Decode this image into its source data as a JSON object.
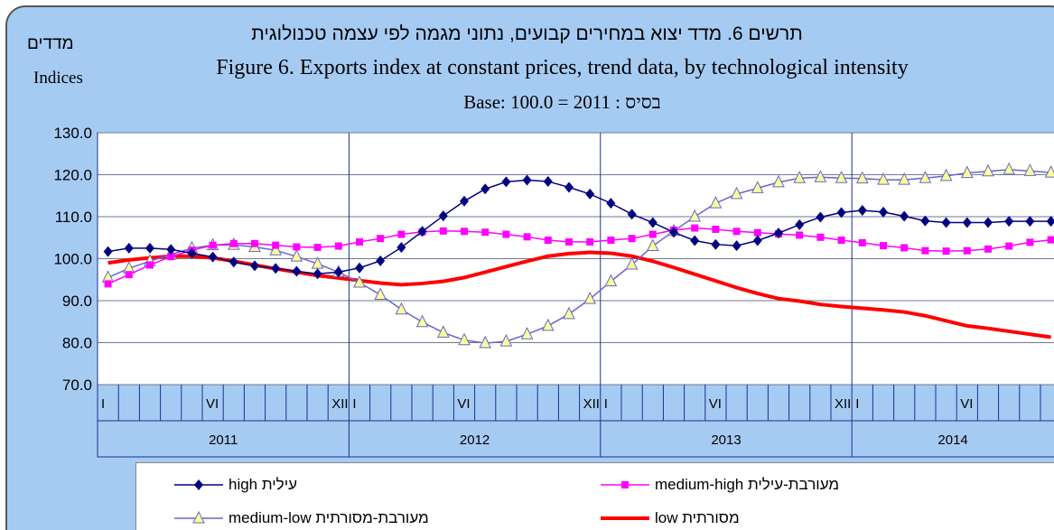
{
  "chart_data": {
    "type": "line",
    "title_he": "תרשים 6. מדד יצוא במחירים קבועים, נתוני מגמה לפי עצמה טכנולוגית",
    "title": "Figure 6. Exports index at constant prices, trend data, by  technological intensity",
    "subtitle": "Base: 100.0 = 2011 : בסיס",
    "y_label_he": "מדדים",
    "y_label": "Indices",
    "years": [
      "2011",
      "2012",
      "2013",
      "2014"
    ],
    "categories": [
      "I",
      null,
      null,
      null,
      null,
      "VI",
      null,
      null,
      null,
      null,
      null,
      "XII",
      "I",
      null,
      null,
      null,
      null,
      "VI",
      null,
      null,
      null,
      null,
      null,
      "XII",
      "I",
      null,
      null,
      null,
      null,
      "VI",
      null,
      null,
      null,
      null,
      null,
      "XII",
      "I",
      null,
      null,
      null,
      null,
      "VI",
      null,
      null,
      null,
      null
    ],
    "ylim": [
      70,
      130
    ],
    "yticks": [
      {
        "value": 70,
        "label": "70.0"
      },
      {
        "value": 80,
        "label": "80.0"
      },
      {
        "value": 90,
        "label": "90.0"
      },
      {
        "value": 100,
        "label": "100.0"
      },
      {
        "value": 110,
        "label": "110.0"
      },
      {
        "value": 120,
        "label": "120.0"
      },
      {
        "value": 130,
        "label": "130.0"
      }
    ],
    "grid": true,
    "series": [
      {
        "name": "עילית high",
        "color": "#000080",
        "marker": "diamond",
        "values": [
          101.7,
          102.5,
          102.5,
          102.2,
          101.3,
          100.4,
          99.2,
          98.3,
          97.7,
          97.0,
          96.4,
          96.8,
          97.8,
          99.5,
          102.7,
          106.5,
          110.2,
          113.7,
          116.6,
          118.3,
          118.7,
          118.4,
          117.0,
          115.4,
          113.2,
          110.6,
          108.6,
          106.3,
          104.3,
          103.4,
          103.1,
          104.3,
          106.1,
          108.1,
          109.9,
          111.0,
          111.5,
          111.1,
          110.1,
          109.0,
          108.6,
          108.6,
          108.6,
          108.9,
          108.9,
          108.9
        ]
      },
      {
        "name": "מעורבת-עילית medium-high",
        "color": "#ff00ff",
        "marker": "square",
        "values": [
          94.0,
          96.2,
          98.5,
          100.5,
          102.0,
          103.2,
          103.6,
          103.6,
          103.2,
          102.8,
          102.7,
          103.0,
          104.0,
          104.8,
          105.8,
          106.4,
          106.6,
          106.5,
          106.3,
          105.8,
          105.2,
          104.4,
          104.0,
          104.0,
          104.4,
          104.8,
          105.8,
          106.8,
          107.3,
          107.0,
          106.5,
          106.2,
          105.9,
          105.6,
          105.1,
          104.4,
          103.8,
          103.1,
          102.6,
          101.9,
          101.8,
          101.9,
          102.3,
          103.0,
          103.9,
          104.5
        ]
      },
      {
        "name": "מעורבת-מסורתית medium-low",
        "color": "#6666cc",
        "marker_fill": "#ffff99",
        "marker": "triangle",
        "values": [
          95.5,
          97.7,
          99.4,
          101.0,
          102.5,
          103.2,
          103.3,
          102.8,
          102.0,
          100.5,
          98.8,
          96.8,
          94.3,
          91.4,
          87.9,
          84.9,
          82.4,
          80.6,
          79.9,
          80.3,
          82.0,
          84.0,
          86.8,
          90.4,
          94.6,
          98.6,
          103.0,
          106.6,
          110.0,
          113.2,
          115.4,
          116.8,
          118.2,
          119.2,
          119.4,
          119.2,
          119.1,
          118.8,
          118.8,
          119.2,
          119.7,
          120.4,
          120.8,
          121.2,
          120.9,
          120.5
        ]
      },
      {
        "name": "מסורתית low",
        "color": "#ff0000",
        "marker": "none",
        "values": [
          99.0,
          99.7,
          100.2,
          100.6,
          100.6,
          100.2,
          99.4,
          98.5,
          97.6,
          96.8,
          96.0,
          95.4,
          94.8,
          94.2,
          93.8,
          94.1,
          94.6,
          95.5,
          96.8,
          98.1,
          99.4,
          100.6,
          101.2,
          101.5,
          101.3,
          100.6,
          99.4,
          97.9,
          96.3,
          94.7,
          93.1,
          91.7,
          90.5,
          89.9,
          89.1,
          88.6,
          88.2,
          87.8,
          87.3,
          86.4,
          85.2,
          84.0,
          83.4,
          82.7,
          82.0,
          81.3
        ]
      }
    ]
  }
}
